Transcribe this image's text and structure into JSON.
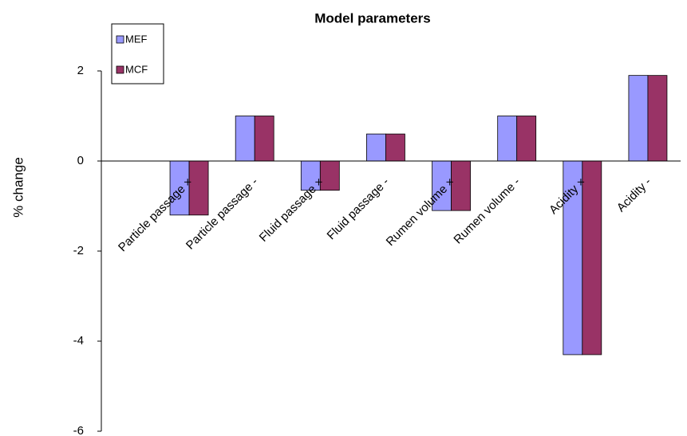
{
  "chart_data": {
    "type": "bar",
    "title": "Model parameters",
    "y_label": "% change",
    "categories": [
      "Particle passage ×",
      "Particle passage -",
      "Fluid passage ×",
      "Fluid passage -",
      "Rumen volume ×",
      "Rumen volume -",
      "Acidity ×",
      "Acidity -"
    ],
    "series": [
      {
        "name": "MEF",
        "color": "#9999ff",
        "values": [
          -1.2,
          1.0,
          -0.65,
          0.6,
          -1.1,
          1.0,
          -4.3,
          1.9
        ]
      },
      {
        "name": "MCF",
        "color": "#993366",
        "values": [
          -1.2,
          1.0,
          -0.65,
          0.6,
          -1.1,
          1.0,
          -4.3,
          1.9
        ]
      }
    ],
    "ylim": [
      -6,
      2
    ],
    "yticks": [
      -6,
      -4,
      -2,
      0,
      2
    ],
    "grid": false,
    "legend": "top-left"
  }
}
